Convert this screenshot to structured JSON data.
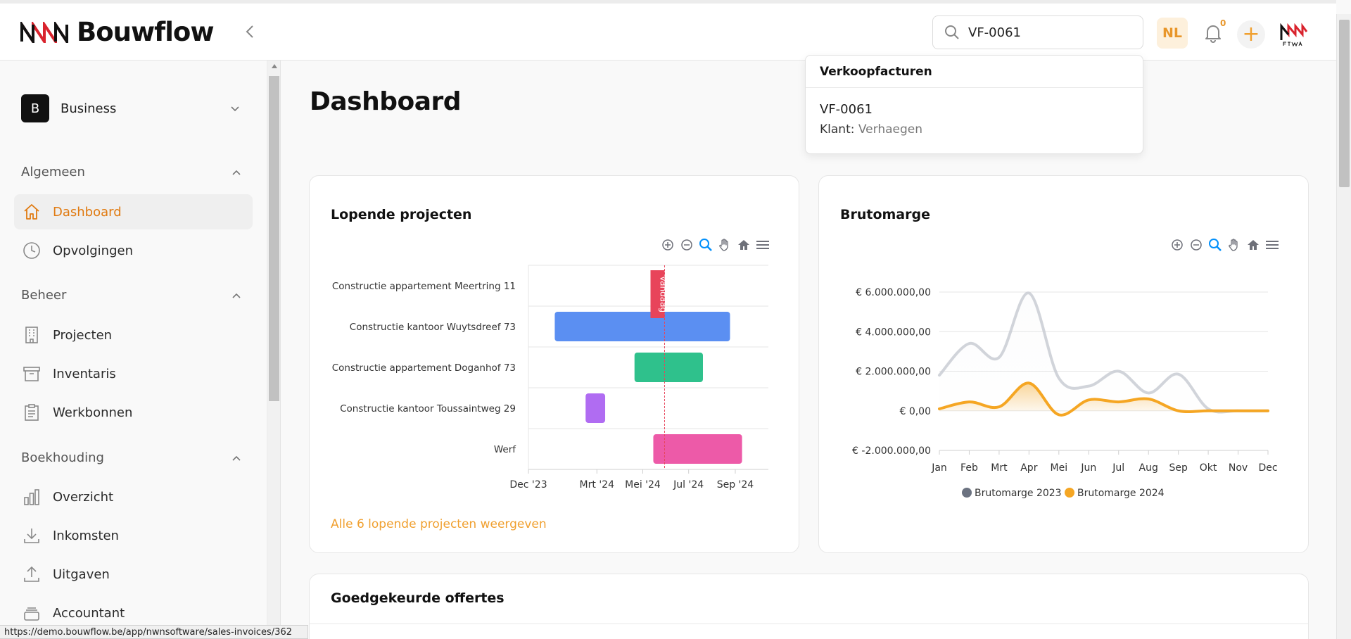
{
  "brand": {
    "name": "Bouwflow"
  },
  "header": {
    "search_value": "VF-0061",
    "language": "NL",
    "notification_count": "0"
  },
  "sidebar": {
    "workspace": {
      "initial": "B",
      "name": "Business"
    },
    "sections": [
      {
        "title": "Algemeen",
        "items": [
          {
            "label": "Dashboard",
            "icon": "home-icon",
            "active": true
          },
          {
            "label": "Opvolgingen",
            "icon": "clock-icon"
          }
        ]
      },
      {
        "title": "Beheer",
        "items": [
          {
            "label": "Projecten",
            "icon": "building-icon"
          },
          {
            "label": "Inventaris",
            "icon": "archive-icon"
          },
          {
            "label": "Werkbonnen",
            "icon": "clipboard-icon"
          }
        ]
      },
      {
        "title": "Boekhouding",
        "items": [
          {
            "label": "Overzicht",
            "icon": "bar-chart-icon"
          },
          {
            "label": "Inkomsten",
            "icon": "download-icon"
          },
          {
            "label": "Uitgaven",
            "icon": "upload-icon"
          },
          {
            "label": "Accountant",
            "icon": "stack-icon"
          }
        ]
      }
    ]
  },
  "main": {
    "title": "Dashboard",
    "lopende": {
      "title": "Lopende projecten",
      "link": "Alle 6 lopende projecten weergeven"
    },
    "brutomarge": {
      "title": "Brutomarge"
    },
    "offertes": {
      "title": "Goedgekeurde offertes"
    }
  },
  "search_dropdown": {
    "heading": "Verkoopfacturen",
    "item_number": "VF-0061",
    "client_label": "Klant:",
    "client_name": "Verhaegen"
  },
  "status_url": "https://demo.bouwflow.be/app/nwnsoftware/sales-invoices/362",
  "chart_data": [
    {
      "type": "gantt",
      "title": "Lopende projecten",
      "categories": [
        "Constructie appartement Meertring 11",
        "Constructie kantoor Wuytsdreef 73",
        "Constructie appartement Doganhof 73",
        "Constructie kantoor Toussaintweg 29",
        "Werf"
      ],
      "x_ticks": [
        "Dec '23",
        "Mrt '24",
        "Mei '24",
        "Jul '24",
        "Sep '24"
      ],
      "x_range": [
        "2023-12-01",
        "2024-10-15"
      ],
      "tasks": [
        {
          "name": "Constructie appartement Meertring 11",
          "start": null,
          "end": null,
          "color": null
        },
        {
          "name": "Constructie kantoor Wuytsdreef 73",
          "start": "2024-01-05",
          "end": "2024-08-25",
          "color": "#5b8ff2"
        },
        {
          "name": "Constructie appartement Doganhof 73",
          "start": "2024-04-20",
          "end": "2024-07-20",
          "color": "#2fc18c"
        },
        {
          "name": "Constructie kantoor Toussaintweg 29",
          "start": "2024-02-15",
          "end": "2024-03-12",
          "color": "#b06cf2"
        },
        {
          "name": "Werf",
          "start": "2024-05-15",
          "end": "2024-09-10",
          "color": "#ed5aa8"
        }
      ],
      "today": {
        "label": "Vandaag",
        "date": "2024-05-30",
        "color": "#e8445a"
      }
    },
    {
      "type": "area",
      "title": "Brutomarge",
      "categories": [
        "Jan",
        "Feb",
        "Mrt",
        "Apr",
        "Mei",
        "Jun",
        "Jul",
        "Aug",
        "Sep",
        "Okt",
        "Nov",
        "Dec"
      ],
      "y_ticks": [
        "€ 6.000.000,00",
        "€ 4.000.000,00",
        "€ 2.000.000,00",
        "€ 0,00",
        "€ -2.000.000,00"
      ],
      "ylim": [
        -2000000,
        6000000
      ],
      "series": [
        {
          "name": "Brutomarge 2023",
          "color": "#c9ccd3",
          "values": [
            1800000,
            3400000,
            2700000,
            5950000,
            1650000,
            1250000,
            2000000,
            900000,
            1850000,
            100000,
            0,
            0
          ]
        },
        {
          "name": "Brutomarge 2024",
          "color": "#f5a623",
          "values": [
            100000,
            450000,
            200000,
            1400000,
            -200000,
            550000,
            450000,
            600000,
            0,
            0,
            0,
            0
          ]
        }
      ]
    }
  ]
}
